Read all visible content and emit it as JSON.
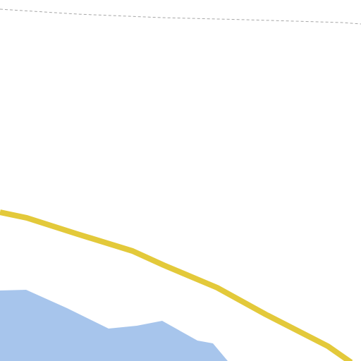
{
  "map": {
    "type": "map-tile",
    "background_color": "#ffffff",
    "features": [
      {
        "kind": "administrative-boundary",
        "style": "dashed",
        "color": "#a6a6a6"
      },
      {
        "kind": "major-road",
        "color": "#e3c93a"
      },
      {
        "kind": "water-body",
        "color": "#a7c5ec"
      }
    ]
  }
}
